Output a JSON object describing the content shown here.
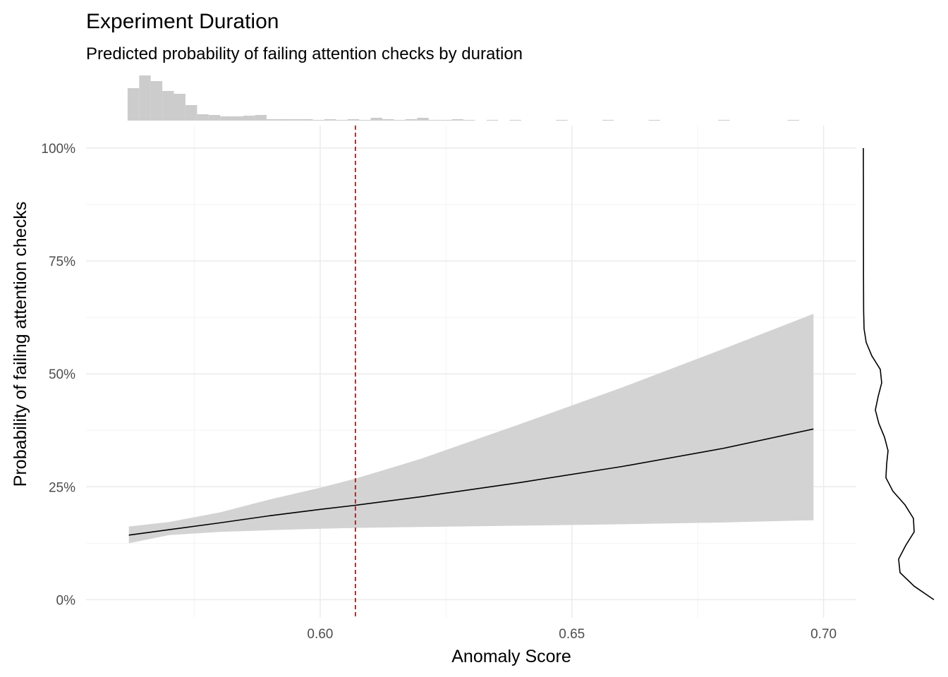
{
  "chart_data": {
    "type": "line",
    "title": "Experiment Duration",
    "subtitle": "Predicted probability of failing attention checks by duration",
    "xlabel": "Anomaly Score",
    "ylabel": "Probability of failing attention checks",
    "xlim": [
      0.5535,
      0.7065
    ],
    "ylim": [
      -0.04,
      1.05
    ],
    "x_ticks": [
      {
        "value": 0.6,
        "label": "0.60"
      },
      {
        "value": 0.65,
        "label": "0.65"
      },
      {
        "value": 0.7,
        "label": "0.70"
      }
    ],
    "y_ticks": [
      {
        "value": 0.0,
        "label": "0%"
      },
      {
        "value": 0.25,
        "label": "25%"
      },
      {
        "value": 0.5,
        "label": "50%"
      },
      {
        "value": 0.75,
        "label": "75%"
      },
      {
        "value": 1.0,
        "label": "100%"
      }
    ],
    "grid": true,
    "threshold_x": 0.607,
    "fit": {
      "x": [
        0.562,
        0.57,
        0.58,
        0.59,
        0.6,
        0.607,
        0.62,
        0.64,
        0.66,
        0.68,
        0.698
      ],
      "y": [
        0.143,
        0.155,
        0.17,
        0.186,
        0.2,
        0.209,
        0.228,
        0.26,
        0.295,
        0.335,
        0.378
      ],
      "lower": [
        0.125,
        0.143,
        0.15,
        0.154,
        0.157,
        0.159,
        0.161,
        0.164,
        0.167,
        0.171,
        0.176
      ],
      "upper": [
        0.162,
        0.172,
        0.193,
        0.222,
        0.248,
        0.268,
        0.312,
        0.39,
        0.47,
        0.555,
        0.633
      ]
    },
    "x_histogram": {
      "bin_width": 0.0023,
      "bins": [
        {
          "x": 0.5629,
          "count": 46
        },
        {
          "x": 0.5652,
          "count": 64
        },
        {
          "x": 0.5675,
          "count": 56
        },
        {
          "x": 0.5698,
          "count": 42
        },
        {
          "x": 0.5721,
          "count": 38
        },
        {
          "x": 0.5744,
          "count": 22
        },
        {
          "x": 0.5767,
          "count": 9
        },
        {
          "x": 0.579,
          "count": 8
        },
        {
          "x": 0.5813,
          "count": 6
        },
        {
          "x": 0.5836,
          "count": 6
        },
        {
          "x": 0.5859,
          "count": 7
        },
        {
          "x": 0.5882,
          "count": 8
        },
        {
          "x": 0.5905,
          "count": 2
        },
        {
          "x": 0.5928,
          "count": 2
        },
        {
          "x": 0.5951,
          "count": 2
        },
        {
          "x": 0.5974,
          "count": 2
        },
        {
          "x": 0.5997,
          "count": 1
        },
        {
          "x": 0.602,
          "count": 2
        },
        {
          "x": 0.6043,
          "count": 1
        },
        {
          "x": 0.6066,
          "count": 2
        },
        {
          "x": 0.6089,
          "count": 1
        },
        {
          "x": 0.6112,
          "count": 4
        },
        {
          "x": 0.6135,
          "count": 2
        },
        {
          "x": 0.6158,
          "count": 1
        },
        {
          "x": 0.6181,
          "count": 2
        },
        {
          "x": 0.6204,
          "count": 4
        },
        {
          "x": 0.6227,
          "count": 1
        },
        {
          "x": 0.625,
          "count": 1
        },
        {
          "x": 0.6273,
          "count": 2
        },
        {
          "x": 0.6296,
          "count": 1
        },
        {
          "x": 0.6342,
          "count": 1
        },
        {
          "x": 0.6388,
          "count": 1
        },
        {
          "x": 0.648,
          "count": 1
        },
        {
          "x": 0.6572,
          "count": 1
        },
        {
          "x": 0.6664,
          "count": 1
        },
        {
          "x": 0.6802,
          "count": 1
        },
        {
          "x": 0.694,
          "count": 1
        }
      ]
    },
    "y_density": {
      "y": [
        0.0,
        0.03,
        0.06,
        0.09,
        0.12,
        0.15,
        0.18,
        0.21,
        0.24,
        0.27,
        0.3,
        0.33,
        0.36,
        0.39,
        0.42,
        0.45,
        0.48,
        0.51,
        0.54,
        0.57,
        0.6,
        0.64,
        0.68,
        0.72,
        0.76,
        0.8,
        0.84,
        0.88,
        0.92,
        0.96,
        1.0
      ],
      "density": [
        1.0,
        0.72,
        0.52,
        0.5,
        0.6,
        0.72,
        0.71,
        0.59,
        0.42,
        0.32,
        0.33,
        0.35,
        0.3,
        0.22,
        0.17,
        0.21,
        0.26,
        0.24,
        0.12,
        0.04,
        0.01,
        0.004,
        0.003,
        0.002,
        0.002,
        0.001,
        0.001,
        0.001,
        0.001,
        0.0005,
        0.0005
      ]
    },
    "colors": {
      "ribbon": "#d3d3d3",
      "line": "#000000",
      "threshold": "#dd0000",
      "histogram": "#cccccc",
      "density": "#000000",
      "grid_major": "#ebebeb",
      "grid_minor": "#f3f3f3"
    }
  }
}
